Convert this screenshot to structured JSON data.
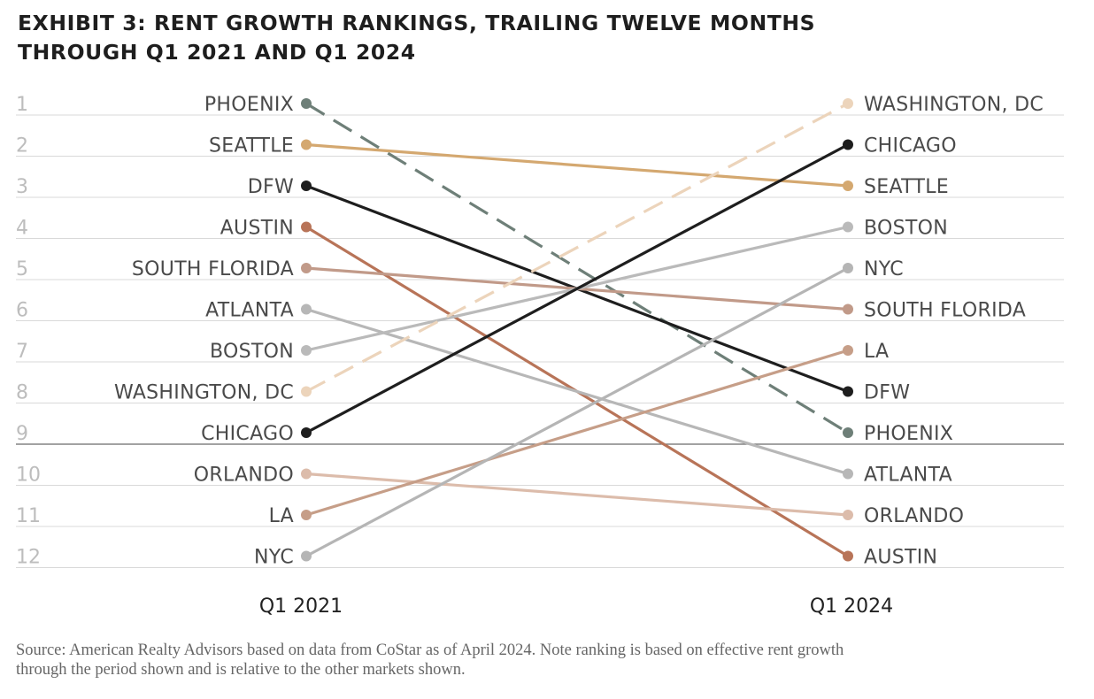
{
  "title_lines": [
    "EXHIBIT 3: RENT GROWTH RANKINGS, TRAILING TWELVE MONTHS",
    "THROUGH Q1 2021 AND Q1 2024"
  ],
  "source_lines": [
    "Source: American Realty Advisors based on data from CoStar as of April 2024. Note ranking is based on effective rent growth",
    "through the period shown and is relative to the other markets shown."
  ],
  "chart_data": {
    "type": "line",
    "subtype": "slope",
    "x": [
      "Q1 2021",
      "Q1 2024"
    ],
    "y_ticks": [
      1,
      2,
      3,
      4,
      5,
      6,
      7,
      8,
      9,
      10,
      11,
      12
    ],
    "ylim": [
      1,
      12
    ],
    "y_inverted": true,
    "grid": true,
    "series": [
      {
        "name": "PHOENIX",
        "values": [
          1,
          9
        ],
        "color": "#6e7f78",
        "dashed": true
      },
      {
        "name": "SEATTLE",
        "values": [
          2,
          3
        ],
        "color": "#d4a870",
        "dashed": false
      },
      {
        "name": "DFW",
        "values": [
          3,
          8
        ],
        "color": "#1e1e1e",
        "dashed": false
      },
      {
        "name": "AUSTIN",
        "values": [
          4,
          12
        ],
        "color": "#b87458",
        "dashed": false
      },
      {
        "name": "SOUTH FLORIDA",
        "values": [
          5,
          6
        ],
        "color": "#c19a89",
        "dashed": false
      },
      {
        "name": "ATLANTA",
        "values": [
          6,
          10
        ],
        "color": "#b7b7b7",
        "dashed": false
      },
      {
        "name": "BOSTON",
        "values": [
          7,
          4
        ],
        "color": "#bababa",
        "dashed": false
      },
      {
        "name": "WASHINGTON, DC",
        "values": [
          8,
          1
        ],
        "color": "#ecd4bb",
        "dashed": true
      },
      {
        "name": "CHICAGO",
        "values": [
          9,
          2
        ],
        "color": "#1e1e1e",
        "dashed": false
      },
      {
        "name": "ORLANDO",
        "values": [
          10,
          11
        ],
        "color": "#dcbcab",
        "dashed": false
      },
      {
        "name": "LA",
        "values": [
          11,
          7
        ],
        "color": "#c69e88",
        "dashed": false
      },
      {
        "name": "NYC",
        "values": [
          12,
          5
        ],
        "color": "#b5b5b5",
        "dashed": false
      }
    ]
  }
}
